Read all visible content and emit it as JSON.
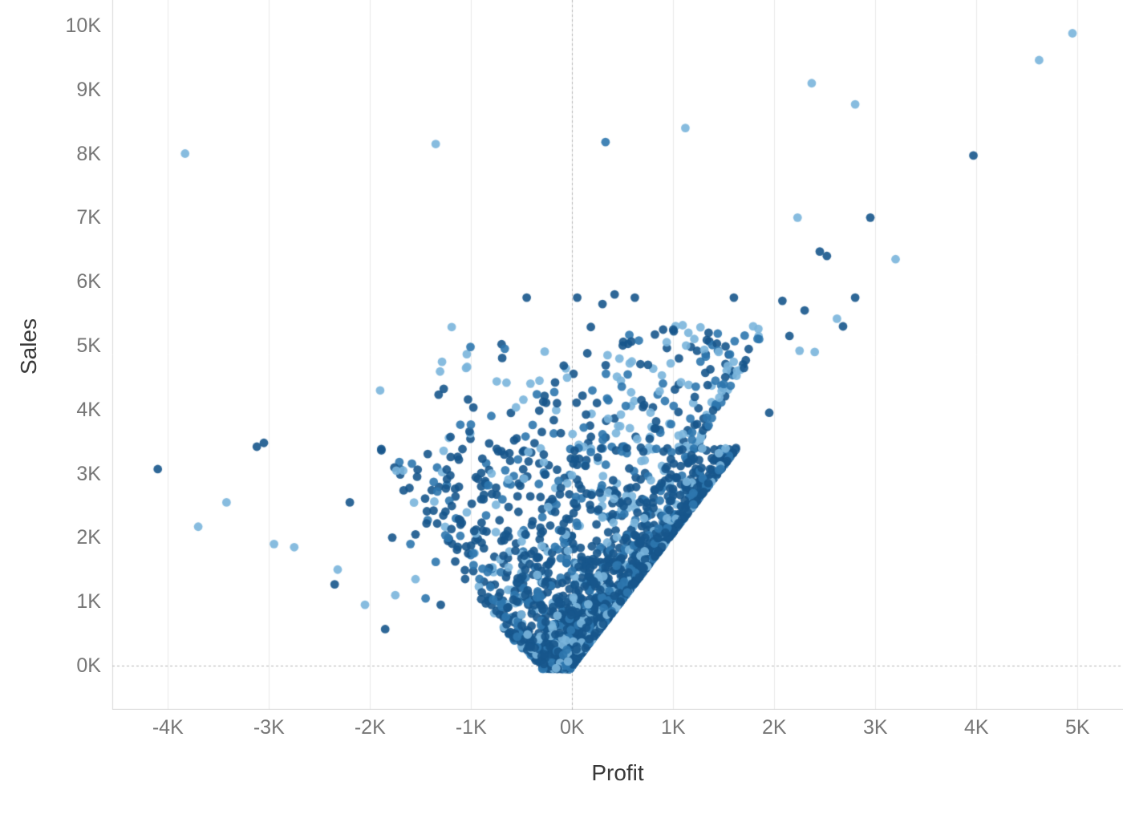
{
  "chart_data": {
    "type": "scatter",
    "title": "",
    "xlabel": "Profit",
    "ylabel": "Sales",
    "xlim": [
      -4.55,
      5.45
    ],
    "ylim": [
      -0.69,
      10.4
    ],
    "grid": "vertical-only",
    "zero_lines": "dashed",
    "legend": "none",
    "x_ticks": [
      {
        "v": -4,
        "label": "-4K"
      },
      {
        "v": -3,
        "label": "-3K"
      },
      {
        "v": -2,
        "label": "-2K"
      },
      {
        "v": -1,
        "label": "-1K"
      },
      {
        "v": 0,
        "label": "0K"
      },
      {
        "v": 1,
        "label": "1K"
      },
      {
        "v": 2,
        "label": "2K"
      },
      {
        "v": 3,
        "label": "3K"
      },
      {
        "v": 4,
        "label": "4K"
      },
      {
        "v": 5,
        "label": "5K"
      }
    ],
    "y_ticks": [
      {
        "v": 0,
        "label": "0K"
      },
      {
        "v": 1,
        "label": "1K"
      },
      {
        "v": 2,
        "label": "2K"
      },
      {
        "v": 3,
        "label": "3K"
      },
      {
        "v": 4,
        "label": "4K"
      },
      {
        "v": 5,
        "label": "5K"
      },
      {
        "v": 6,
        "label": "6K"
      },
      {
        "v": 7,
        "label": "7K"
      },
      {
        "v": 8,
        "label": "8K"
      },
      {
        "v": 9,
        "label": "9K"
      },
      {
        "v": 10,
        "label": "10K"
      }
    ],
    "units": "thousands",
    "palette": [
      "#17568c",
      "#2e77ae",
      "#7ab5db"
    ],
    "point_radius": 5.4,
    "opacity": 0.9,
    "seed": 42,
    "outliers": [
      [
        -3.83,
        8.0,
        2
      ],
      [
        -1.35,
        8.15,
        2
      ],
      [
        0.33,
        8.18,
        1
      ],
      [
        1.12,
        8.4,
        2
      ],
      [
        2.37,
        9.1,
        2
      ],
      [
        2.8,
        8.77,
        2
      ],
      [
        4.62,
        9.46,
        2
      ],
      [
        4.95,
        9.88,
        2
      ],
      [
        3.97,
        7.97,
        0
      ],
      [
        2.95,
        7.0,
        0
      ],
      [
        2.23,
        7.0,
        2
      ],
      [
        3.2,
        6.35,
        2
      ],
      [
        2.45,
        6.47,
        0
      ],
      [
        2.52,
        6.4,
        0
      ],
      [
        -4.1,
        3.07,
        0
      ],
      [
        -3.7,
        2.17,
        2
      ],
      [
        -3.42,
        2.55,
        2
      ],
      [
        -3.05,
        3.48,
        0
      ],
      [
        -3.12,
        3.42,
        0
      ],
      [
        -2.95,
        1.9,
        2
      ],
      [
        -2.75,
        1.85,
        2
      ],
      [
        -2.32,
        1.5,
        2
      ],
      [
        -2.35,
        1.27,
        0
      ],
      [
        -2.2,
        2.55,
        0
      ],
      [
        -1.85,
        0.57,
        0
      ],
      [
        -2.05,
        0.95,
        2
      ],
      [
        -1.9,
        4.3,
        2
      ],
      [
        -1.7,
        3.07,
        0
      ],
      [
        -1.78,
        2.0,
        0
      ],
      [
        -1.6,
        1.9,
        1
      ],
      [
        -1.55,
        1.35,
        2
      ],
      [
        -1.45,
        1.05,
        1
      ],
      [
        -1.3,
        0.95,
        0
      ],
      [
        -1.75,
        1.1,
        2
      ],
      [
        -1.55,
        2.05,
        0
      ],
      [
        -1.35,
        1.62,
        1
      ],
      [
        -1.05,
        4.65,
        2
      ],
      [
        -0.65,
        4.42,
        2
      ],
      [
        -0.8,
        3.9,
        1
      ],
      [
        -1.15,
        2.3,
        1
      ],
      [
        -0.9,
        2.6,
        0
      ],
      [
        -0.55,
        3.55,
        0
      ],
      [
        -0.7,
        3.35,
        0
      ],
      [
        -0.3,
        3.65,
        0
      ],
      [
        -0.15,
        4.1,
        0
      ],
      [
        -0.05,
        4.5,
        2
      ],
      [
        -0.45,
        5.75,
        0
      ],
      [
        0.05,
        5.75,
        0
      ],
      [
        0.3,
        5.65,
        0
      ],
      [
        0.42,
        5.8,
        0
      ],
      [
        0.62,
        5.75,
        0
      ],
      [
        0.15,
        4.88,
        0
      ],
      [
        0.35,
        4.85,
        2
      ],
      [
        0.2,
        4.3,
        1
      ],
      [
        0.75,
        4.7,
        0
      ],
      [
        0.55,
        4.55,
        1
      ],
      [
        0.9,
        5.25,
        0
      ],
      [
        1.0,
        5.25,
        0
      ],
      [
        1.15,
        5.2,
        2
      ],
      [
        1.35,
        5.2,
        0
      ],
      [
        1.6,
        5.75,
        0
      ],
      [
        1.45,
        4.9,
        2
      ],
      [
        1.5,
        4.4,
        1
      ],
      [
        1.7,
        4.65,
        0
      ],
      [
        2.08,
        5.7,
        0
      ],
      [
        2.3,
        5.55,
        0
      ],
      [
        2.62,
        5.42,
        2
      ],
      [
        2.68,
        5.3,
        0
      ],
      [
        2.8,
        5.75,
        0
      ],
      [
        2.25,
        4.92,
        2
      ],
      [
        2.4,
        4.9,
        2
      ],
      [
        1.95,
        3.95,
        0
      ],
      [
        1.85,
        5.1,
        1
      ],
      [
        2.15,
        5.15,
        0
      ]
    ],
    "cluster": {
      "count": 2600,
      "s_max": 3.45,
      "s_exp": 1.9,
      "s_offset": -0.05,
      "right_slope": 0.48,
      "left_base": 0.28,
      "left_coef": 0.62,
      "left_exp": 0.8,
      "t_exp": 3.0,
      "weights": [
        0.62,
        0.2,
        0.18
      ]
    },
    "mid_scatter": {
      "count": 230,
      "s_min": 3.38,
      "s_span": 1.95,
      "s_exp": 1.3,
      "right_slope": 0.36,
      "width_base": 1.35,
      "t_exp": 2.4,
      "weights": [
        0.45,
        0.2,
        0.35
      ]
    },
    "colors": {
      "grid": "#e9e9e9",
      "border": "#d6d6d6",
      "zero_dash": "#b5b5b5",
      "tick_text": "#767676",
      "axis_title_text": "#383838"
    }
  }
}
